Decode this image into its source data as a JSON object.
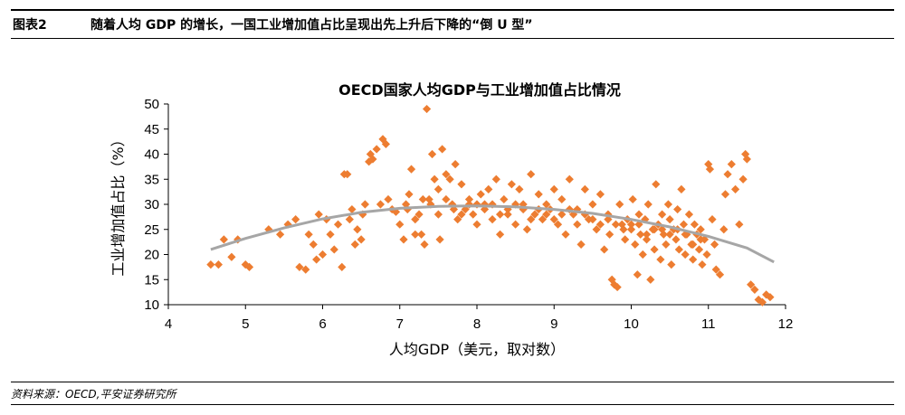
{
  "header": {
    "figure_number": "图表2",
    "figure_title": "随着人均 GDP 的增长，一国工业增加值占比呈现出先上升后下降的“倒 U 型”"
  },
  "footer": {
    "source": "资料来源：OECD,平安证券研究所"
  },
  "colors": {
    "points": "#ED7D31",
    "trend": "#A6A6A6",
    "axis": "#000000"
  },
  "chart_data": {
    "type": "scatter",
    "title": "OECD国家人均GDP与工业增加值占比情况",
    "xlabel": "人均GDP（美元，取对数）",
    "ylabel": "工业增加值占比（%）",
    "xlim": [
      4,
      12
    ],
    "ylim": [
      10,
      50
    ],
    "xticks": [
      "4",
      "5",
      "6",
      "7",
      "8",
      "9",
      "10",
      "11",
      "12"
    ],
    "yticks": [
      "10",
      "15",
      "20",
      "25",
      "30",
      "35",
      "40",
      "45",
      "50"
    ],
    "grid": false,
    "legend": false,
    "marker": "diamond",
    "series": [
      {
        "points": [
          [
            4.55,
            18
          ],
          [
            4.65,
            18
          ],
          [
            4.72,
            23
          ],
          [
            4.82,
            19.5
          ],
          [
            4.9,
            23
          ],
          [
            5.0,
            18
          ],
          [
            5.05,
            17.5
          ],
          [
            5.3,
            25
          ],
          [
            5.45,
            24
          ],
          [
            5.55,
            26
          ],
          [
            5.65,
            27
          ],
          [
            5.7,
            17.5
          ],
          [
            5.78,
            17
          ],
          [
            5.82,
            24
          ],
          [
            5.88,
            22
          ],
          [
            5.92,
            19
          ],
          [
            5.95,
            28
          ],
          [
            6.0,
            20
          ],
          [
            6.05,
            27
          ],
          [
            6.1,
            24
          ],
          [
            6.15,
            21
          ],
          [
            6.2,
            26
          ],
          [
            6.25,
            17.5
          ],
          [
            6.28,
            36
          ],
          [
            6.32,
            36
          ],
          [
            6.35,
            27
          ],
          [
            6.38,
            29
          ],
          [
            6.42,
            22
          ],
          [
            6.45,
            25
          ],
          [
            6.5,
            23
          ],
          [
            6.52,
            28
          ],
          [
            6.55,
            30
          ],
          [
            6.6,
            38.5
          ],
          [
            6.62,
            40
          ],
          [
            6.65,
            39
          ],
          [
            6.7,
            41
          ],
          [
            6.75,
            30
          ],
          [
            6.78,
            43
          ],
          [
            6.82,
            42
          ],
          [
            6.85,
            31
          ],
          [
            6.9,
            29
          ],
          [
            6.95,
            28.5
          ],
          [
            7.0,
            26
          ],
          [
            7.05,
            23
          ],
          [
            7.08,
            30
          ],
          [
            7.12,
            32
          ],
          [
            7.15,
            37
          ],
          [
            7.2,
            24
          ],
          [
            7.25,
            28
          ],
          [
            7.28,
            24
          ],
          [
            7.32,
            22
          ],
          [
            7.35,
            49
          ],
          [
            7.38,
            31
          ],
          [
            7.42,
            40
          ],
          [
            7.45,
            35
          ],
          [
            7.5,
            33
          ],
          [
            7.52,
            23
          ],
          [
            7.55,
            41
          ],
          [
            7.6,
            36
          ],
          [
            7.65,
            35
          ],
          [
            7.68,
            30
          ],
          [
            7.72,
            38
          ],
          [
            7.75,
            27
          ],
          [
            7.8,
            34
          ],
          [
            7.85,
            29
          ],
          [
            7.9,
            31
          ],
          [
            7.95,
            28
          ],
          [
            8.0,
            26
          ],
          [
            8.05,
            32
          ],
          [
            8.1,
            30
          ],
          [
            8.15,
            33
          ],
          [
            8.2,
            27
          ],
          [
            8.25,
            35
          ],
          [
            8.3,
            24
          ],
          [
            8.35,
            31
          ],
          [
            8.4,
            29
          ],
          [
            8.45,
            34
          ],
          [
            8.5,
            26
          ],
          [
            8.55,
            33
          ],
          [
            8.6,
            30
          ],
          [
            8.65,
            25
          ],
          [
            8.7,
            36
          ],
          [
            8.75,
            28
          ],
          [
            8.8,
            32
          ],
          [
            8.85,
            27
          ],
          [
            8.9,
            30
          ],
          [
            8.95,
            29
          ],
          [
            9.0,
            33
          ],
          [
            9.05,
            26
          ],
          [
            9.1,
            31
          ],
          [
            9.15,
            24
          ],
          [
            9.2,
            35
          ],
          [
            9.25,
            28
          ],
          [
            9.3,
            29
          ],
          [
            9.35,
            22
          ],
          [
            9.4,
            33
          ],
          [
            9.45,
            27
          ],
          [
            9.5,
            30
          ],
          [
            9.55,
            25
          ],
          [
            9.6,
            32
          ],
          [
            9.65,
            21
          ],
          [
            9.7,
            28
          ],
          [
            9.72,
            24
          ],
          [
            9.75,
            15
          ],
          [
            9.78,
            14
          ],
          [
            9.82,
            13.5
          ],
          [
            9.85,
            30
          ],
          [
            9.88,
            26
          ],
          [
            9.92,
            23
          ],
          [
            9.95,
            27
          ],
          [
            10.0,
            25
          ],
          [
            10.02,
            31
          ],
          [
            10.05,
            22
          ],
          [
            10.08,
            16
          ],
          [
            10.1,
            28
          ],
          [
            10.12,
            24
          ],
          [
            10.15,
            20
          ],
          [
            10.18,
            27
          ],
          [
            10.2,
            23
          ],
          [
            10.22,
            30
          ],
          [
            10.25,
            15
          ],
          [
            10.28,
            25
          ],
          [
            10.3,
            21
          ],
          [
            10.32,
            34
          ],
          [
            10.35,
            26
          ],
          [
            10.38,
            19
          ],
          [
            10.4,
            28
          ],
          [
            10.42,
            24
          ],
          [
            10.45,
            22
          ],
          [
            10.48,
            30
          ],
          [
            10.5,
            27
          ],
          [
            10.52,
            18
          ],
          [
            10.55,
            25
          ],
          [
            10.58,
            23
          ],
          [
            10.6,
            29
          ],
          [
            10.62,
            21
          ],
          [
            10.65,
            33
          ],
          [
            10.68,
            26
          ],
          [
            10.7,
            20
          ],
          [
            10.72,
            24
          ],
          [
            10.75,
            28
          ],
          [
            10.78,
            22
          ],
          [
            10.8,
            19
          ],
          [
            10.82,
            26
          ],
          [
            10.85,
            24
          ],
          [
            10.88,
            21
          ],
          [
            10.9,
            25
          ],
          [
            10.92,
            18
          ],
          [
            10.95,
            23
          ],
          [
            10.98,
            20
          ],
          [
            11.0,
            38
          ],
          [
            11.02,
            37
          ],
          [
            11.05,
            27
          ],
          [
            11.08,
            22
          ],
          [
            11.1,
            17
          ],
          [
            11.15,
            16
          ],
          [
            11.2,
            25
          ],
          [
            11.22,
            32
          ],
          [
            11.25,
            36
          ],
          [
            11.3,
            38
          ],
          [
            11.35,
            33
          ],
          [
            11.4,
            26
          ],
          [
            11.45,
            35
          ],
          [
            11.48,
            40
          ],
          [
            11.5,
            39
          ],
          [
            11.55,
            14
          ],
          [
            11.6,
            13
          ],
          [
            11.65,
            11
          ],
          [
            11.7,
            10.5
          ],
          [
            11.75,
            12
          ],
          [
            11.8,
            11.5
          ],
          [
            7.1,
            29
          ],
          [
            7.4,
            30
          ],
          [
            7.7,
            29
          ],
          [
            8.0,
            30
          ],
          [
            8.3,
            28
          ],
          [
            8.6,
            29
          ],
          [
            8.9,
            28
          ],
          [
            9.2,
            29
          ],
          [
            9.5,
            27
          ],
          [
            9.8,
            26
          ],
          [
            10.1,
            26
          ],
          [
            10.4,
            25
          ],
          [
            10.7,
            24
          ],
          [
            7.3,
            31
          ],
          [
            7.6,
            31
          ],
          [
            7.9,
            30
          ],
          [
            8.2,
            30
          ],
          [
            8.5,
            30
          ],
          [
            8.8,
            29
          ],
          [
            9.1,
            28
          ],
          [
            9.4,
            28
          ],
          [
            9.7,
            27
          ],
          [
            10.0,
            26
          ],
          [
            10.3,
            25
          ],
          [
            10.6,
            25
          ],
          [
            10.9,
            23
          ],
          [
            7.2,
            27
          ],
          [
            7.5,
            28
          ],
          [
            7.8,
            28
          ],
          [
            8.1,
            29
          ],
          [
            8.4,
            28
          ],
          [
            8.7,
            27
          ],
          [
            9.0,
            27
          ],
          [
            9.3,
            26
          ],
          [
            9.6,
            26
          ],
          [
            9.9,
            25
          ],
          [
            10.2,
            24
          ],
          [
            10.5,
            24
          ],
          [
            10.8,
            22
          ]
        ]
      }
    ],
    "trendline": {
      "type": "polynomial",
      "points": [
        [
          4.55,
          21
        ],
        [
          5.0,
          23.2
        ],
        [
          5.5,
          25.3
        ],
        [
          6.0,
          27.1
        ],
        [
          6.5,
          28.4
        ],
        [
          7.0,
          29.2
        ],
        [
          7.5,
          29.6
        ],
        [
          8.0,
          29.7
        ],
        [
          8.5,
          29.5
        ],
        [
          9.0,
          29.0
        ],
        [
          9.5,
          28.2
        ],
        [
          10.0,
          27.0
        ],
        [
          10.5,
          25.5
        ],
        [
          11.0,
          23.6
        ],
        [
          11.5,
          21.3
        ],
        [
          11.85,
          18.5
        ]
      ]
    }
  }
}
